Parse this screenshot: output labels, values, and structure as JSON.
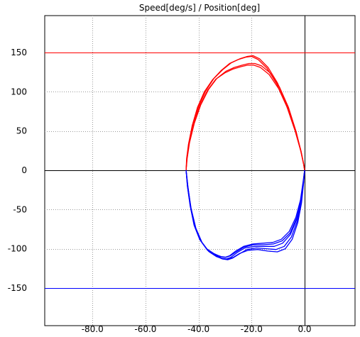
{
  "chart_data": {
    "type": "line",
    "title": "Speed[deg/s] / Position[deg]",
    "xlabel": "",
    "ylabel": "",
    "xlim": [
      -98,
      19
    ],
    "ylim": [
      -198,
      197
    ],
    "grid": true,
    "x_ticks": [
      -80,
      -60,
      -40,
      -20,
      0
    ],
    "x_tick_labels": [
      "-80.0",
      "-60.0",
      "-40.0",
      "-20.0",
      "0.0"
    ],
    "y_ticks": [
      150,
      100,
      50,
      0,
      -50,
      -100,
      -150
    ],
    "y_tick_labels": [
      "150",
      "100",
      "50",
      "0",
      "-50",
      "-100",
      "-150"
    ],
    "colors": {
      "upper_limit": "#ff0000",
      "lower_limit": "#0000ff",
      "positive_trace": "#ff0000",
      "negative_trace": "#0000ff",
      "grid": "#9a9a9a",
      "zero_axes": "#000000"
    },
    "limits": [
      {
        "value": 150,
        "color": "#ff0000"
      },
      {
        "value": -150,
        "color": "#0000ff"
      }
    ],
    "series": [
      {
        "color": "#ff0000",
        "x": [
          -44.7,
          -44.5,
          -43.8,
          -42.4,
          -40.4,
          -37.8,
          -34.8,
          -31.5,
          -28.3,
          -25.1,
          -22.2,
          -20.0,
          -17.5,
          -14.2,
          -10.5,
          -6.8,
          -3.6,
          -1.5,
          -0.4,
          0.0
        ],
        "y": [
          0,
          15,
          33,
          57,
          80,
          100,
          115,
          127,
          136,
          141,
          144,
          145,
          141,
          130,
          110,
          82,
          50,
          25,
          8,
          0
        ]
      },
      {
        "color": "#ff0000",
        "x": [
          -44.7,
          -44.4,
          -43.6,
          -42.1,
          -40.0,
          -37.3,
          -34.2,
          -30.9,
          -27.6,
          -24.4,
          -21.6,
          -19.5,
          -17.0,
          -13.8,
          -10.2,
          -6.6,
          -3.5,
          -1.4,
          -0.4,
          0.0
        ],
        "y": [
          0,
          15,
          34,
          58,
          81,
          101,
          117,
          128,
          137,
          142,
          145,
          146,
          142,
          131,
          111,
          83,
          51,
          25,
          8,
          0
        ]
      },
      {
        "color": "#ff0000",
        "x": [
          -44.7,
          -44.4,
          -43.5,
          -41.8,
          -39.5,
          -36.6,
          -33.5,
          -30.1,
          -26.9,
          -23.9,
          -21.4,
          -19.2,
          -16.7,
          -13.4,
          -9.8,
          -6.3,
          -3.3,
          -1.3,
          -0.3,
          0.0
        ],
        "y": [
          0,
          15,
          35,
          60,
          82,
          102,
          116,
          124,
          129,
          132,
          134,
          134,
          131,
          122,
          104,
          78,
          48,
          23,
          7,
          0
        ]
      },
      {
        "color": "#ff0000",
        "x": [
          -44.7,
          -44.3,
          -43.4,
          -41.6,
          -39.2,
          -36.2,
          -33.1,
          -29.7,
          -26.5,
          -23.5,
          -21.0,
          -18.8,
          -16.3,
          -13.0,
          -9.5,
          -6.1,
          -3.2,
          -1.3,
          -0.3,
          0.0
        ],
        "y": [
          0,
          15,
          35,
          60,
          83,
          103,
          117,
          126,
          131,
          134,
          136,
          136,
          133,
          124,
          106,
          80,
          49,
          23,
          7,
          0
        ]
      },
      {
        "color": "#0000ff",
        "x": [
          -44.7,
          -44.2,
          -43.2,
          -41.7,
          -39.6,
          -37.0,
          -34.3,
          -31.8,
          -30.0,
          -28.3,
          -26.0,
          -23.0,
          -19.5,
          -15.8,
          -12.0,
          -8.8,
          -5.8,
          -3.3,
          -1.6,
          -0.6,
          0.0
        ],
        "y": [
          0,
          -20,
          -45,
          -70,
          -88,
          -100,
          -106,
          -110,
          -111,
          -109,
          -103,
          -97,
          -94,
          -93,
          -92,
          -88,
          -78,
          -60,
          -38,
          -15,
          0
        ]
      },
      {
        "color": "#0000ff",
        "x": [
          -44.7,
          -44.1,
          -43.0,
          -41.4,
          -39.2,
          -36.6,
          -33.9,
          -31.3,
          -29.5,
          -27.8,
          -25.5,
          -22.5,
          -19.0,
          -15.2,
          -11.5,
          -8.3,
          -5.4,
          -3.0,
          -1.4,
          -0.5,
          0.0
        ],
        "y": [
          0,
          -21,
          -47,
          -72,
          -90,
          -102,
          -108,
          -112,
          -113,
          -111,
          -105,
          -99,
          -97,
          -97,
          -97,
          -93,
          -82,
          -63,
          -40,
          -16,
          0
        ]
      },
      {
        "color": "#0000ff",
        "x": [
          -44.7,
          -44.0,
          -42.9,
          -41.2,
          -38.9,
          -36.3,
          -33.6,
          -31.0,
          -29.0,
          -27.2,
          -24.8,
          -21.8,
          -18.2,
          -14.4,
          -10.8,
          -7.7,
          -5.0,
          -2.8,
          -1.3,
          -0.4,
          0.0
        ],
        "y": [
          0,
          -21,
          -48,
          -73,
          -91,
          -103,
          -109,
          -113,
          -114,
          -112,
          -107,
          -101,
          -99,
          -100,
          -101,
          -97,
          -85,
          -65,
          -41,
          -16,
          0
        ]
      },
      {
        "color": "#0000ff",
        "x": [
          -44.7,
          -44.2,
          -43.1,
          -41.5,
          -39.4,
          -36.8,
          -34.1,
          -31.5,
          -29.6,
          -28.0,
          -25.8,
          -22.9,
          -19.3,
          -15.5,
          -11.8,
          -8.5,
          -5.5,
          -3.0,
          -1.4,
          -0.5,
          0.0
        ],
        "y": [
          0,
          -20,
          -46,
          -71,
          -89,
          -101,
          -107,
          -110,
          -111,
          -109,
          -104,
          -98,
          -95,
          -95,
          -94,
          -90,
          -80,
          -61,
          -39,
          -15,
          0
        ]
      },
      {
        "color": "#0000ff",
        "x": [
          -44.7,
          -44.0,
          -42.8,
          -41.0,
          -38.7,
          -36.0,
          -33.3,
          -30.7,
          -28.7,
          -26.9,
          -24.5,
          -21.3,
          -17.7,
          -13.9,
          -10.3,
          -7.3,
          -4.7,
          -2.6,
          -1.2,
          -0.4,
          0.0
        ],
        "y": [
          0,
          -22,
          -49,
          -74,
          -92,
          -104,
          -110,
          -113,
          -113,
          -111,
          -106,
          -102,
          -101,
          -103,
          -104,
          -100,
          -88,
          -67,
          -42,
          -17,
          0
        ]
      }
    ]
  }
}
